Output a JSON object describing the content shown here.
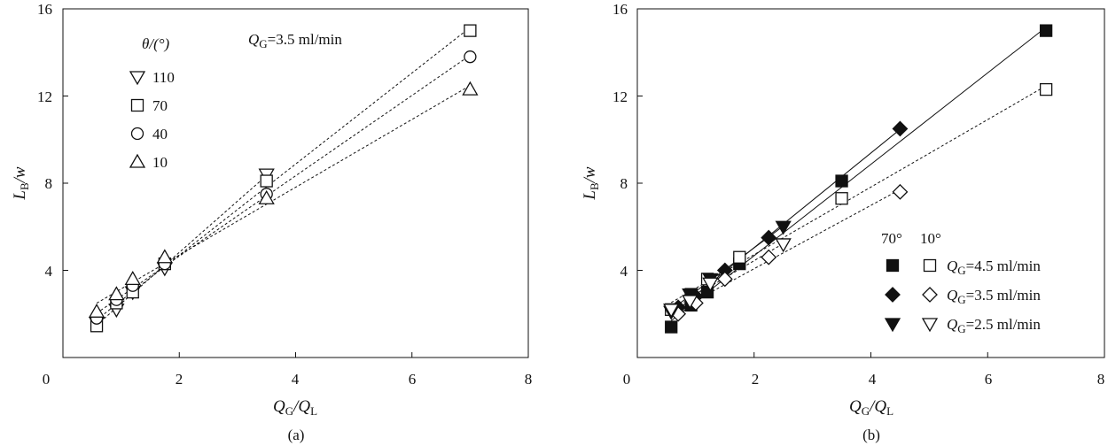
{
  "chart_data": [
    {
      "panel_label": "(a)",
      "type": "scatter",
      "annotation": {
        "main": "Q",
        "sub": "G",
        "rest": "=3.5 ml/min"
      },
      "legend_title": "θ/(°)",
      "xlabel": {
        "main": "Q",
        "sub1": "G",
        "mid": "/Q",
        "sub2": "L"
      },
      "ylabel": {
        "main": "L",
        "sub": "B",
        "rest": "/w"
      },
      "xlim": [
        0,
        8
      ],
      "ylim": [
        0,
        16
      ],
      "xticks": [
        "0",
        "2",
        "4",
        "6",
        "8"
      ],
      "yticks": [
        "4",
        "8",
        "12",
        "16"
      ],
      "series": [
        {
          "name": "110",
          "marker": "triangle-down",
          "filled": false,
          "fit": "dashed",
          "points": [
            [
              0.58,
              1.6
            ],
            [
              0.92,
              2.2
            ],
            [
              1.2,
              3.0
            ],
            [
              1.75,
              4.1
            ],
            [
              3.5,
              8.4
            ]
          ]
        },
        {
          "name": "70",
          "marker": "square",
          "filled": false,
          "fit": "dashed",
          "points": [
            [
              0.58,
              1.45
            ],
            [
              0.92,
              2.5
            ],
            [
              1.2,
              3.0
            ],
            [
              1.75,
              4.3
            ],
            [
              3.5,
              8.1
            ],
            [
              7.0,
              15.0
            ]
          ]
        },
        {
          "name": "40",
          "marker": "circle",
          "filled": false,
          "fit": "dashed",
          "points": [
            [
              0.58,
              1.8
            ],
            [
              0.92,
              2.65
            ],
            [
              1.2,
              3.3
            ],
            [
              1.75,
              4.3
            ],
            [
              3.5,
              7.5
            ],
            [
              7.0,
              13.8
            ]
          ]
        },
        {
          "name": "10",
          "marker": "triangle-up",
          "filled": false,
          "fit": "dashed",
          "points": [
            [
              0.58,
              2.1
            ],
            [
              0.92,
              2.9
            ],
            [
              1.2,
              3.6
            ],
            [
              1.75,
              4.6
            ],
            [
              3.5,
              7.3
            ],
            [
              7.0,
              12.3
            ]
          ]
        }
      ]
    },
    {
      "panel_label": "(b)",
      "type": "scatter",
      "legend_col_headers": [
        "70°",
        "10°"
      ],
      "xlabel": {
        "main": "Q",
        "sub1": "G",
        "mid": "/Q",
        "sub2": "L"
      },
      "ylabel": {
        "main": "L",
        "sub": "B",
        "rest": "/w"
      },
      "xlim": [
        0,
        8
      ],
      "ylim": [
        0,
        16
      ],
      "xticks": [
        "0",
        "2",
        "4",
        "6",
        "8"
      ],
      "yticks": [
        "4",
        "8",
        "12",
        "16"
      ],
      "legend_rows": [
        {
          "main": "Q",
          "sub": "G",
          "rest": "=4.5 ml/min"
        },
        {
          "main": "Q",
          "sub": "G",
          "rest": "=3.5 ml/min"
        },
        {
          "main": "Q",
          "sub": "G",
          "rest": "=2.5 ml/min"
        }
      ],
      "series": [
        {
          "name": "70° QG=4.5 ml/min",
          "marker": "square",
          "filled": true,
          "fit": "solid",
          "points": [
            [
              0.58,
              1.4
            ],
            [
              0.92,
              2.4
            ],
            [
              1.2,
              3.0
            ],
            [
              1.75,
              4.3
            ],
            [
              3.5,
              8.1
            ],
            [
              7.0,
              15.0
            ]
          ]
        },
        {
          "name": "10° QG=4.5 ml/min",
          "marker": "square",
          "filled": false,
          "fit": "dashed",
          "points": [
            [
              0.58,
              2.2
            ],
            [
              0.92,
              2.9
            ],
            [
              1.2,
              3.6
            ],
            [
              1.75,
              4.6
            ],
            [
              3.5,
              7.3
            ],
            [
              7.0,
              12.3
            ]
          ]
        },
        {
          "name": "70° QG=3.5 ml/min",
          "marker": "diamond",
          "filled": true,
          "fit": "solid",
          "points": [
            [
              0.7,
              2.3
            ],
            [
              1.0,
              2.8
            ],
            [
              1.5,
              4.0
            ],
            [
              2.25,
              5.5
            ],
            [
              4.5,
              10.5
            ]
          ]
        },
        {
          "name": "10° QG=3.5 ml/min",
          "marker": "diamond",
          "filled": false,
          "fit": "dashed",
          "points": [
            [
              0.7,
              2.0
            ],
            [
              1.0,
              2.5
            ],
            [
              1.5,
              3.6
            ],
            [
              2.25,
              4.6
            ],
            [
              4.5,
              7.6
            ]
          ]
        },
        {
          "name": "70° QG=2.5 ml/min",
          "marker": "triangle-down",
          "filled": true,
          "fit": "solid",
          "points": [
            [
              0.58,
              2.1
            ],
            [
              0.9,
              2.9
            ],
            [
              1.25,
              3.6
            ],
            [
              2.5,
              6.0
            ]
          ]
        },
        {
          "name": "10° QG=2.5 ml/min",
          "marker": "triangle-down",
          "filled": false,
          "fit": "dashed",
          "points": [
            [
              0.58,
              2.2
            ],
            [
              0.9,
              2.6
            ],
            [
              1.25,
              3.4
            ],
            [
              2.5,
              5.2
            ]
          ]
        }
      ]
    }
  ]
}
